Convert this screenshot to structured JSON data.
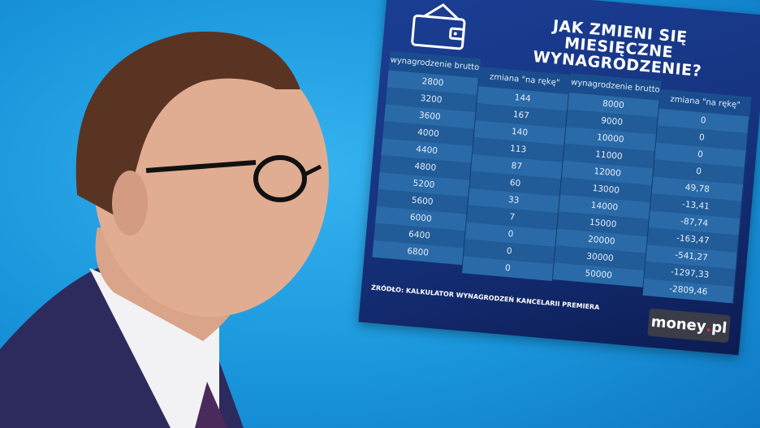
{
  "infographic": {
    "title_line1": "JAK ZMIENI SIĘ MIESIĘCZNE",
    "title_line2": "WYNAGRODZENIE?",
    "icon": "wallet-icon",
    "headers": {
      "gross": "wynagrodzenie brutto",
      "change": "zmiana \"na rękę\""
    },
    "left_gross": [
      "2800",
      "3200",
      "3600",
      "4000",
      "4400",
      "4800",
      "5200",
      "5600",
      "6000",
      "6400",
      "6800"
    ],
    "left_change": [
      "144",
      "167",
      "140",
      "113",
      "87",
      "60",
      "33",
      "7",
      "0",
      "0",
      "0"
    ],
    "right_gross": [
      "8000",
      "9000",
      "10000",
      "11000",
      "12000",
      "13000",
      "14000",
      "15000",
      "20000",
      "30000",
      "50000"
    ],
    "right_change": [
      "0",
      "0",
      "0",
      "0",
      "49,78",
      "-13,41",
      "-87,74",
      "-163,47",
      "-541,27",
      "-1297,33",
      "-2809,46"
    ],
    "source": "ŹRÓDŁO: KALKULATOR WYNAGRODZEŃ KANCELARII PREMIERA",
    "logo_main": "money",
    "logo_dot": ".",
    "logo_tld": "pl"
  },
  "colors": {
    "background": "#1a96dc",
    "panel": "#16337f",
    "row": "#2a6aa8",
    "logo_dot": "#e0314c"
  }
}
